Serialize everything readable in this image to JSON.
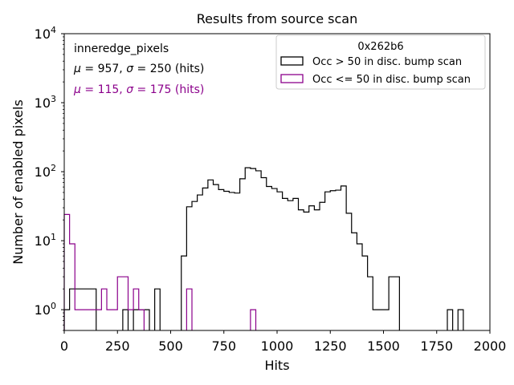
{
  "chart_data": {
    "type": "histogram",
    "title": "Results from source scan",
    "xlabel": "Hits",
    "ylabel": "Number of enabled pixels",
    "xlim": [
      0,
      2000
    ],
    "ylim": [
      0.5,
      10000
    ],
    "yscale": "log",
    "grid": false,
    "x_ticks": [
      0,
      250,
      500,
      750,
      1000,
      1250,
      1500,
      1750,
      2000
    ],
    "x_tick_labels": [
      "0",
      "250",
      "500",
      "750",
      "1000",
      "1250",
      "1500",
      "1750",
      "2000"
    ],
    "y_ticks": [
      1,
      10,
      100,
      1000,
      10000
    ],
    "y_tick_labels": [
      {
        "base": "10",
        "exp": "0"
      },
      {
        "base": "10",
        "exp": "1"
      },
      {
        "base": "10",
        "exp": "2"
      },
      {
        "base": "10",
        "exp": "3"
      },
      {
        "base": "10",
        "exp": "4"
      }
    ],
    "annotations": {
      "name": "inneredge_pixels",
      "stats_black": {
        "mu": "957",
        "sigma": "250",
        "unit": "(hits)"
      },
      "stats_purple": {
        "mu": "115",
        "sigma": "175",
        "unit": "(hits)"
      }
    },
    "legend": {
      "position": "top-right",
      "title": "0x262b6",
      "entries": [
        "Occ > 50 in disc. bump scan",
        "Occ <= 50 in disc. bump scan"
      ]
    },
    "bin_width": 25,
    "series": [
      {
        "name": "Occ > 50 in disc. bump scan",
        "color": "#000000",
        "bins": [
          [
            0,
            1
          ],
          [
            25,
            2
          ],
          [
            50,
            2
          ],
          [
            75,
            2
          ],
          [
            100,
            2
          ],
          [
            125,
            2
          ],
          [
            275,
            1
          ],
          [
            325,
            1
          ],
          [
            350,
            1
          ],
          [
            375,
            1
          ],
          [
            425,
            2
          ],
          [
            550,
            6
          ],
          [
            575,
            31
          ],
          [
            600,
            37
          ],
          [
            625,
            46
          ],
          [
            650,
            58
          ],
          [
            675,
            76
          ],
          [
            700,
            65
          ],
          [
            725,
            55
          ],
          [
            750,
            52
          ],
          [
            775,
            50
          ],
          [
            800,
            49
          ],
          [
            825,
            79
          ],
          [
            850,
            114
          ],
          [
            875,
            111
          ],
          [
            900,
            103
          ],
          [
            925,
            82
          ],
          [
            950,
            61
          ],
          [
            975,
            57
          ],
          [
            1000,
            51
          ],
          [
            1025,
            41
          ],
          [
            1050,
            38
          ],
          [
            1075,
            41
          ],
          [
            1100,
            28
          ],
          [
            1125,
            26
          ],
          [
            1150,
            32
          ],
          [
            1175,
            28
          ],
          [
            1200,
            36
          ],
          [
            1225,
            51
          ],
          [
            1250,
            53
          ],
          [
            1275,
            54
          ],
          [
            1300,
            62
          ],
          [
            1325,
            25
          ],
          [
            1350,
            13
          ],
          [
            1375,
            9
          ],
          [
            1400,
            6
          ],
          [
            1425,
            3
          ],
          [
            1450,
            1
          ],
          [
            1475,
            1
          ],
          [
            1500,
            1
          ],
          [
            1525,
            3
          ],
          [
            1550,
            3
          ],
          [
            1800,
            1
          ],
          [
            1850,
            1
          ]
        ]
      },
      {
        "name": "Occ <= 50 in disc. bump scan",
        "color": "#8b008b",
        "bins": [
          [
            0,
            24
          ],
          [
            25,
            9
          ],
          [
            50,
            1
          ],
          [
            75,
            1
          ],
          [
            100,
            1
          ],
          [
            125,
            1
          ],
          [
            150,
            1
          ],
          [
            175,
            2
          ],
          [
            200,
            1
          ],
          [
            225,
            1
          ],
          [
            250,
            3
          ],
          [
            275,
            3
          ],
          [
            300,
            1
          ],
          [
            325,
            2
          ],
          [
            350,
            1
          ],
          [
            575,
            2
          ],
          [
            875,
            1
          ]
        ]
      }
    ]
  }
}
